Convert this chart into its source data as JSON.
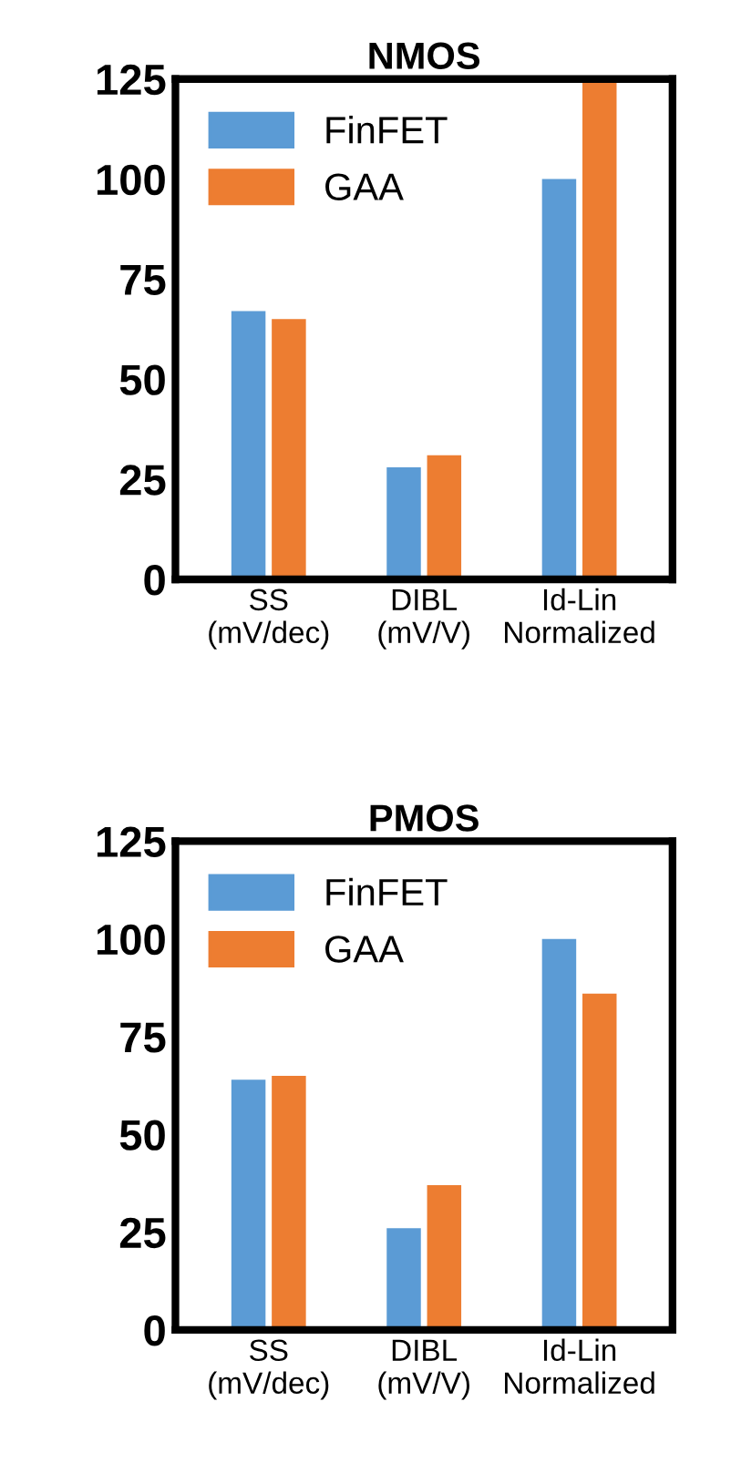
{
  "chart_data": [
    {
      "type": "bar",
      "title": "NMOS",
      "categories": [
        "SS\n(mV/dec)",
        "DIBL\n(mV/V)",
        "Id-Lin\nNormalized"
      ],
      "series": [
        {
          "name": "FinFET",
          "color": "#5b9bd5",
          "values": [
            67,
            28,
            100
          ]
        },
        {
          "name": "GAA",
          "color": "#ed7d31",
          "values": [
            65,
            31,
            124
          ]
        }
      ],
      "ylim": [
        0,
        125
      ],
      "yticks": [
        0,
        25,
        50,
        75,
        100,
        125
      ],
      "legend": "top left",
      "grid": false
    },
    {
      "type": "bar",
      "title": "PMOS",
      "categories": [
        "SS\n(mV/dec)",
        "DIBL\n(mV/V)",
        "Id-Lin\nNormalized"
      ],
      "series": [
        {
          "name": "FinFET",
          "color": "#5b9bd5",
          "values": [
            64,
            26,
            100
          ]
        },
        {
          "name": "GAA",
          "color": "#ed7d31",
          "values": [
            65,
            37,
            86
          ]
        }
      ],
      "ylim": [
        0,
        125
      ],
      "yticks": [
        0,
        25,
        50,
        75,
        100,
        125
      ],
      "legend": "top left",
      "grid": false
    }
  ]
}
